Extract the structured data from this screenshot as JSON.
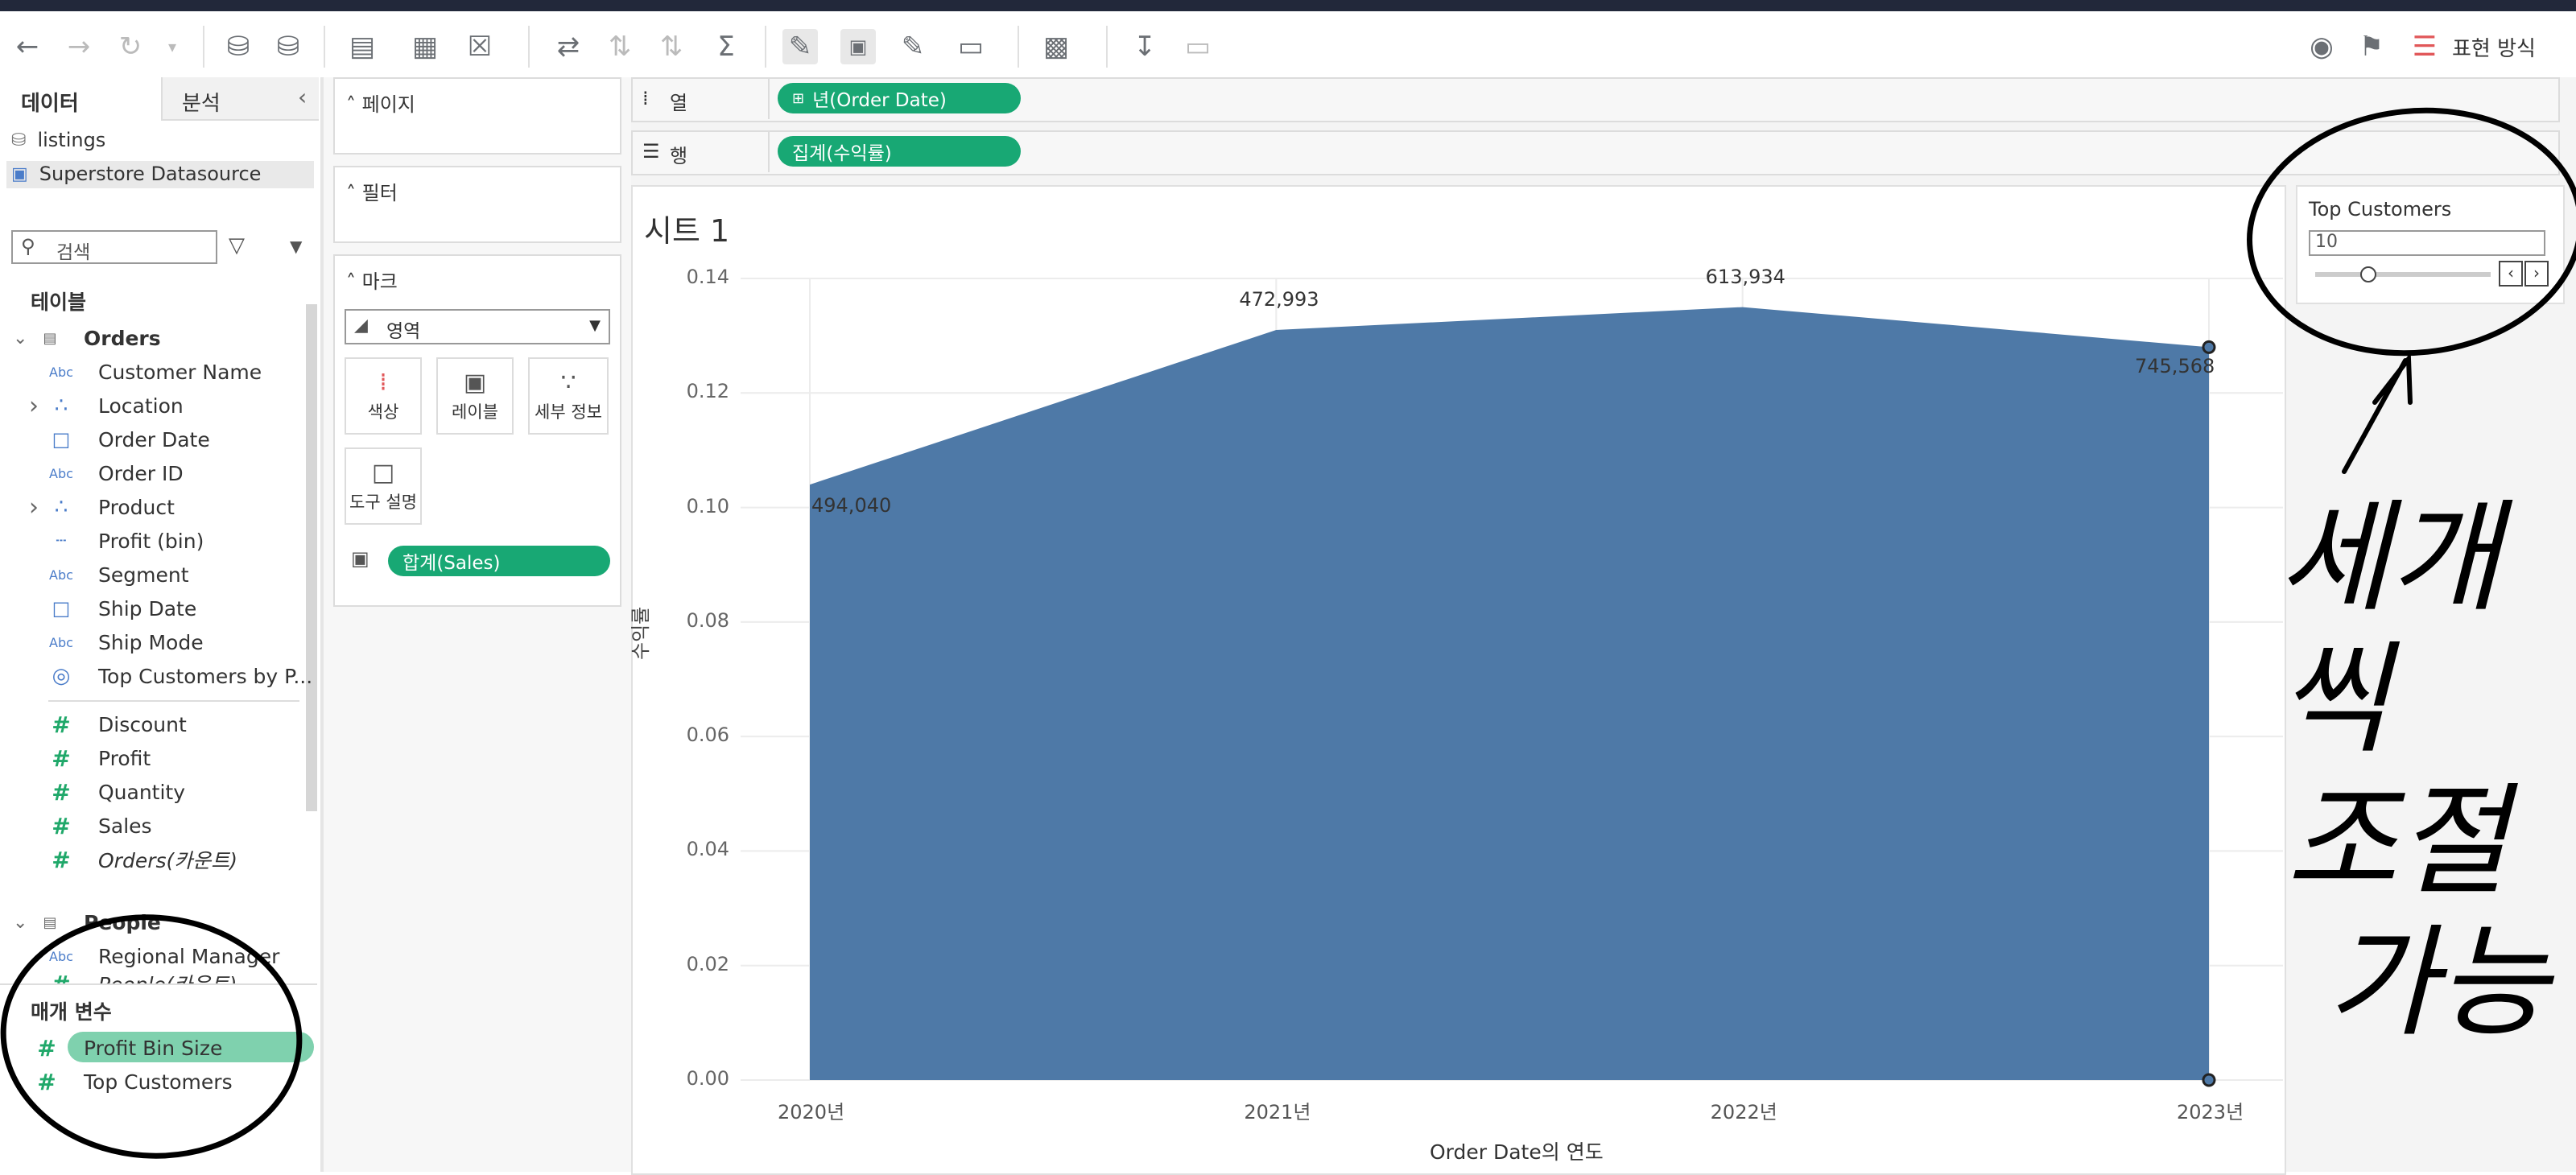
{
  "toolbar": {
    "presentation_label": "표현 방식"
  },
  "data_pane": {
    "tabs": [
      "데이터",
      "분석"
    ],
    "datasources": [
      "listings",
      "Superstore Datasource"
    ],
    "search_placeholder": "검색",
    "tables_header": "테이블",
    "orders_table": "Orders",
    "orders_fields": [
      {
        "label": "Customer Name",
        "icon": "Abc"
      },
      {
        "label": "Location",
        "icon": "hierarchy-icon"
      },
      {
        "label": "Order Date",
        "icon": "calendar-icon"
      },
      {
        "label": "Order ID",
        "icon": "Abc"
      },
      {
        "label": "Product",
        "icon": "hierarchy-icon"
      },
      {
        "label": "Profit (bin)",
        "icon": "bin-icon"
      },
      {
        "label": "Segment",
        "icon": "Abc"
      },
      {
        "label": "Ship Date",
        "icon": "calendar-icon"
      },
      {
        "label": "Ship Mode",
        "icon": "Abc"
      },
      {
        "label": "Top Customers by P...",
        "icon": "set-icon"
      },
      {
        "label": "Discount",
        "icon": "#"
      },
      {
        "label": "Profit",
        "icon": "#"
      },
      {
        "label": "Quantity",
        "icon": "#"
      },
      {
        "label": "Sales",
        "icon": "#"
      },
      {
        "label": "Orders(카운트)",
        "icon": "#"
      }
    ],
    "people_table": "People",
    "people_fields": [
      {
        "label": "Regional Manager",
        "icon": "Abc"
      },
      {
        "label": "People(카운트)",
        "icon": "#"
      }
    ],
    "parameters_header": "매개 변수",
    "parameters": [
      "Profit Bin Size",
      "Top Customers"
    ]
  },
  "cards": {
    "pages": "페이지",
    "filters": "필터",
    "marks": "마크",
    "mark_type": "영역",
    "mark_buttons": [
      "색상",
      "레이블",
      "세부 정보",
      "도구 설명"
    ],
    "label_pill": "합계(Sales)"
  },
  "shelves": {
    "columns_label": "열",
    "columns_pill": "년(Order Date)",
    "rows_label": "행",
    "rows_pill": "집계(수익률)"
  },
  "sheet_title": "시트 1",
  "parameter_control": {
    "title": "Top Customers",
    "value": "10",
    "slider_fraction": 0.3
  },
  "chart_data": {
    "type": "area",
    "x": [
      "2020년",
      "2021년",
      "2022년",
      "2023년"
    ],
    "values": [
      0.104,
      0.131,
      0.135,
      0.128
    ],
    "data_labels": [
      "494,040",
      "472,993",
      "613,934",
      "745,568"
    ],
    "yticks": [
      "0.14",
      "0.12",
      "0.10",
      "0.08",
      "0.06",
      "0.04",
      "0.02",
      "0.00"
    ],
    "ylim": [
      0,
      0.14
    ],
    "xlabel": "Order Date의 연도",
    "ylabel": "수익률",
    "fill_color": "#4e79a7",
    "grid": true
  },
  "annotation": {
    "handwritten_text": [
      "세개씩",
      "조절",
      "가능"
    ]
  }
}
